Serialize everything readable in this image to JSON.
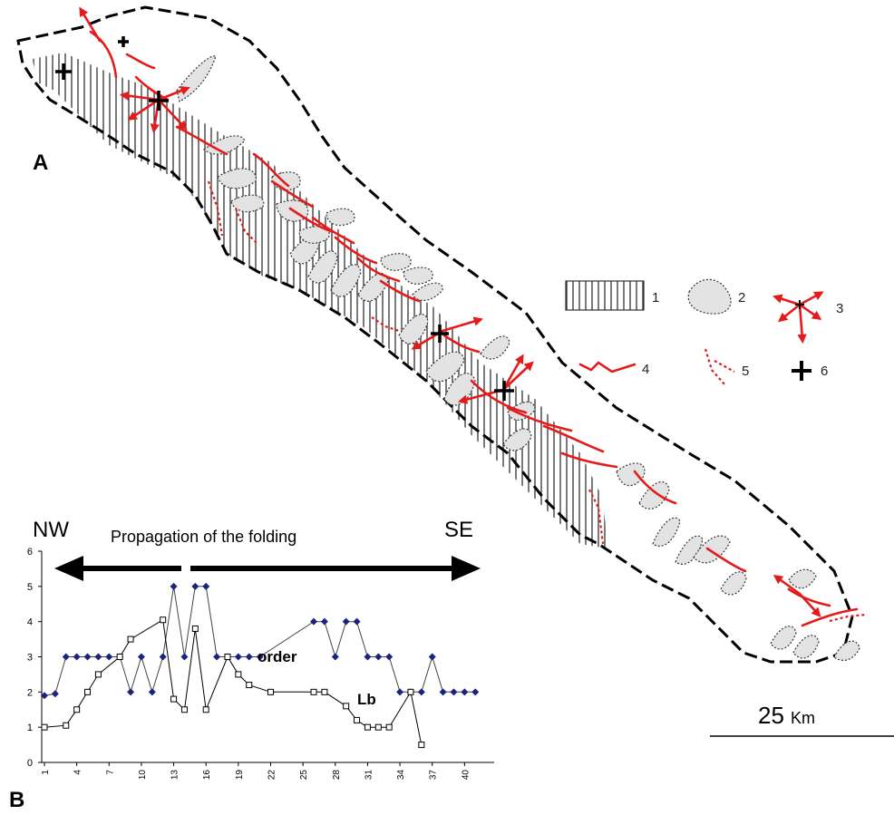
{
  "panels": {
    "a_label": "A",
    "b_label": "B"
  },
  "legend": [
    {
      "num": "1",
      "meaning_icon": "vertical-hatch-swatch-icon"
    },
    {
      "num": "2",
      "meaning_icon": "grey-fold-shape-icon"
    },
    {
      "num": "3",
      "meaning_icon": "red-radial-arrows-icon"
    },
    {
      "num": "4",
      "meaning_icon": "red-line-arrow-icon"
    },
    {
      "num": "5",
      "meaning_icon": "red-dotted-lines-icon"
    },
    {
      "num": "6",
      "meaning_icon": "black-cross-icon"
    }
  ],
  "scale": {
    "value": "25",
    "unit": "Km"
  },
  "colors": {
    "red": "#e41b1b",
    "fold_fill": "#e3e3e3",
    "order_series": "#1a237e",
    "lb_series": "#000000"
  },
  "chart_data": {
    "type": "line",
    "title": "Propagation of the folding",
    "direction_labels": {
      "left": "NW",
      "right": "SE"
    },
    "x_ticks": [
      "1",
      "4",
      "7",
      "10",
      "13",
      "16",
      "19",
      "22",
      "25",
      "28",
      "31",
      "34",
      "37",
      "40"
    ],
    "xlim": [
      1,
      42
    ],
    "ylim": [
      0,
      6
    ],
    "y_ticks": [
      "0",
      "1",
      "2",
      "3",
      "4",
      "5",
      "6"
    ],
    "grid": false,
    "series": [
      {
        "name": "order",
        "marker": "diamond",
        "points": [
          [
            1,
            1.9
          ],
          [
            2,
            1.95
          ],
          [
            3,
            3
          ],
          [
            4,
            3
          ],
          [
            5,
            3
          ],
          [
            6,
            3
          ],
          [
            7,
            3
          ],
          [
            8,
            3
          ],
          [
            9,
            2
          ],
          [
            10,
            3
          ],
          [
            11,
            2
          ],
          [
            12,
            3
          ],
          [
            13,
            5
          ],
          [
            14,
            3
          ],
          [
            15,
            5
          ],
          [
            16,
            5
          ],
          [
            17,
            3
          ],
          [
            18,
            3
          ],
          [
            19,
            3
          ],
          [
            20,
            3
          ],
          [
            21,
            3
          ],
          [
            26,
            4
          ],
          [
            27,
            4
          ],
          [
            28,
            3
          ],
          [
            29,
            4
          ],
          [
            30,
            4
          ],
          [
            31,
            3
          ],
          [
            32,
            3
          ],
          [
            33,
            3
          ],
          [
            34,
            2
          ],
          [
            35,
            2
          ],
          [
            36,
            2
          ],
          [
            37,
            3
          ],
          [
            38,
            2
          ],
          [
            39,
            2
          ],
          [
            40,
            2
          ],
          [
            41,
            2
          ]
        ]
      },
      {
        "name": "Lb",
        "marker": "square",
        "points": [
          [
            1,
            1
          ],
          [
            3,
            1.05
          ],
          [
            4,
            1.5
          ],
          [
            5,
            2
          ],
          [
            6,
            2.5
          ],
          [
            8,
            3
          ],
          [
            9,
            3.5
          ],
          [
            12,
            4.05
          ],
          [
            13,
            1.8
          ],
          [
            14,
            1.5
          ],
          [
            15,
            3.8
          ],
          [
            16,
            1.5
          ],
          [
            18,
            3
          ],
          [
            19,
            2.5
          ],
          [
            20,
            2.2
          ],
          [
            22,
            2
          ],
          [
            26,
            2
          ],
          [
            27,
            2
          ],
          [
            29,
            1.6
          ],
          [
            30,
            1.2
          ],
          [
            31,
            1
          ],
          [
            32,
            1
          ],
          [
            33,
            1
          ],
          [
            35,
            2
          ],
          [
            36,
            0.5
          ]
        ]
      }
    ]
  }
}
